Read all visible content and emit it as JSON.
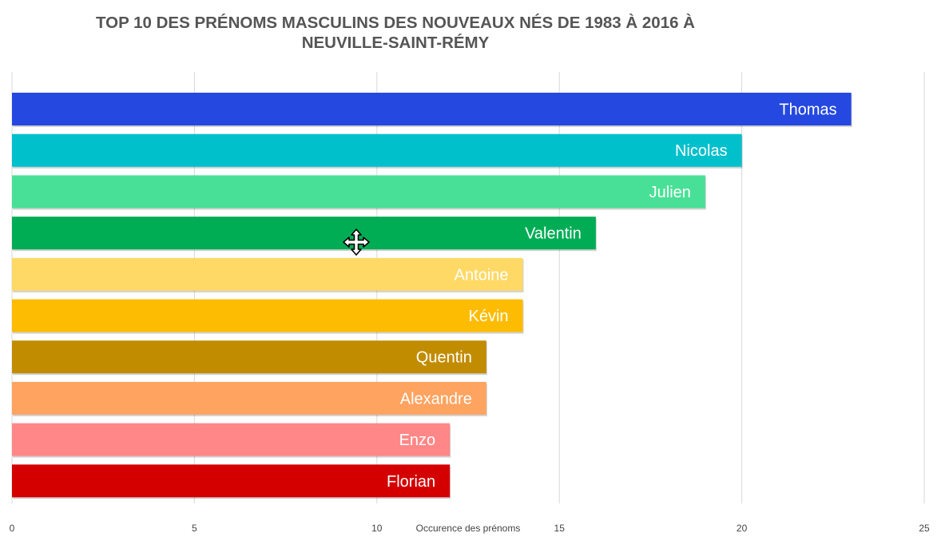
{
  "chart_data": {
    "type": "bar",
    "orientation": "horizontal",
    "title_lines": [
      "TOP 10 DES PRÉNOMS MASCULINS DES NOUVEAUX NÉS DE 1983 À 2016 À",
      "NEUVILLE-SAINT-RÉMY"
    ],
    "xlabel": "Occurence des prénoms",
    "ylabel": "",
    "xlim": [
      0,
      25
    ],
    "x_ticks": [
      0,
      5,
      10,
      15,
      20,
      25
    ],
    "grid": true,
    "categories": [
      "Thomas",
      "Nicolas",
      "Julien",
      "Valentin",
      "Antoine",
      "Kévin",
      "Quentin",
      "Alexandre",
      "Enzo",
      "Florian"
    ],
    "values": [
      23,
      20,
      19,
      16,
      14,
      14,
      13,
      13,
      12,
      12
    ],
    "colors": [
      "#2448e0",
      "#00c0cc",
      "#48e096",
      "#00ad55",
      "#fed966",
      "#fdbc02",
      "#c28c00",
      "#ffa360",
      "#ff8787",
      "#d40000"
    ]
  },
  "cursor": {
    "icon": "move-cursor-icon"
  }
}
